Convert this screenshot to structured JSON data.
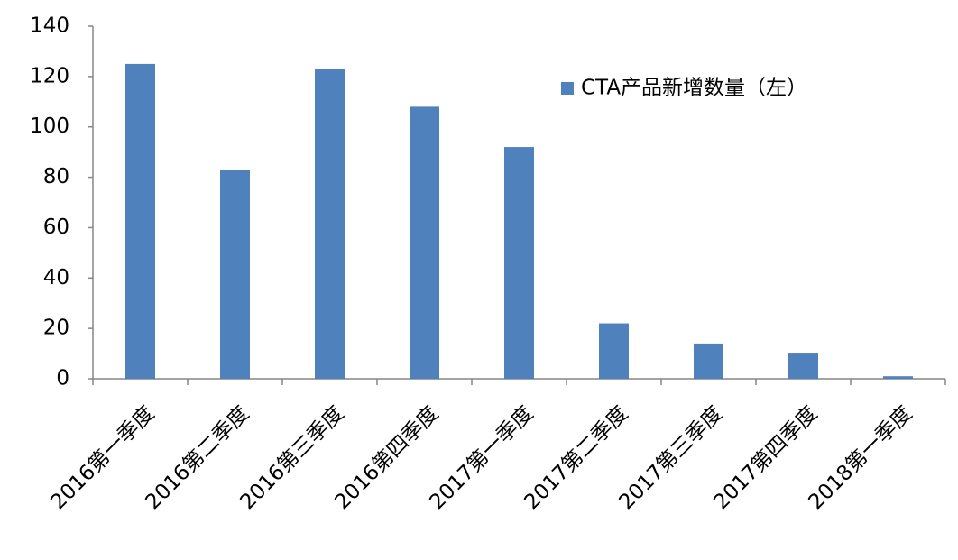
{
  "chart_data": {
    "type": "bar",
    "categories": [
      "2016第一季度",
      "2016第二季度",
      "2016第三季度",
      "2016第四季度",
      "2017第一季度",
      "2017第二季度",
      "2017第三季度",
      "2017第四季度",
      "2018第一季度"
    ],
    "series": [
      {
        "name": "CTA产品新增数量（左）",
        "color": "#4f81bd",
        "values": [
          125,
          83,
          123,
          108,
          92,
          22,
          14,
          10,
          1
        ]
      }
    ],
    "ylim": [
      0,
      140
    ],
    "yticks": [
      0,
      20,
      40,
      60,
      80,
      100,
      120,
      140
    ],
    "legend": "top-right"
  }
}
